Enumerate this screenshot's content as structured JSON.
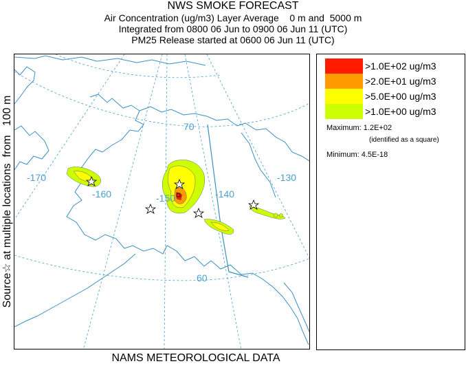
{
  "header": {
    "title": "NWS SMOKE FORECAST",
    "line1": "Air Concentration (ug/m3) Layer Average    0 m and  5000 m",
    "line2": "Integrated from 0800 06 Jun to 0900 06 Jun 11 (UTC)",
    "line3": "PM25 Release started at 0600 06 Jun 11 (UTC)"
  },
  "side_label": "Source☆ at multiple locations  from   100 m",
  "footer": "NAMS METEOROLOGICAL DATA",
  "map": {
    "lat_labels": [
      "70",
      "60"
    ],
    "lon_labels": [
      "-170",
      "-160",
      "-150",
      "-140",
      "-130"
    ],
    "colors": {
      "coast": "#3a8fc0",
      "grid": "#4a9fd0",
      "border": "#3a8fc0"
    }
  },
  "legend": {
    "entries": [
      {
        "label": ">1.0E+02 ug/m3",
        "color": "#ff1a00"
      },
      {
        "label": ">2.0E+01 ug/m3",
        "color": "#ff9a00"
      },
      {
        "label": ">5.0E+00 ug/m3",
        "color": "#ffff00"
      },
      {
        "label": ">1.0E+00 ug/m3",
        "color": "#ccff00"
      }
    ],
    "maximum": "Maximum: 1.2E+02",
    "maximum_note": "(identified as a square)",
    "minimum": "Minimum: 4.5E-18"
  }
}
